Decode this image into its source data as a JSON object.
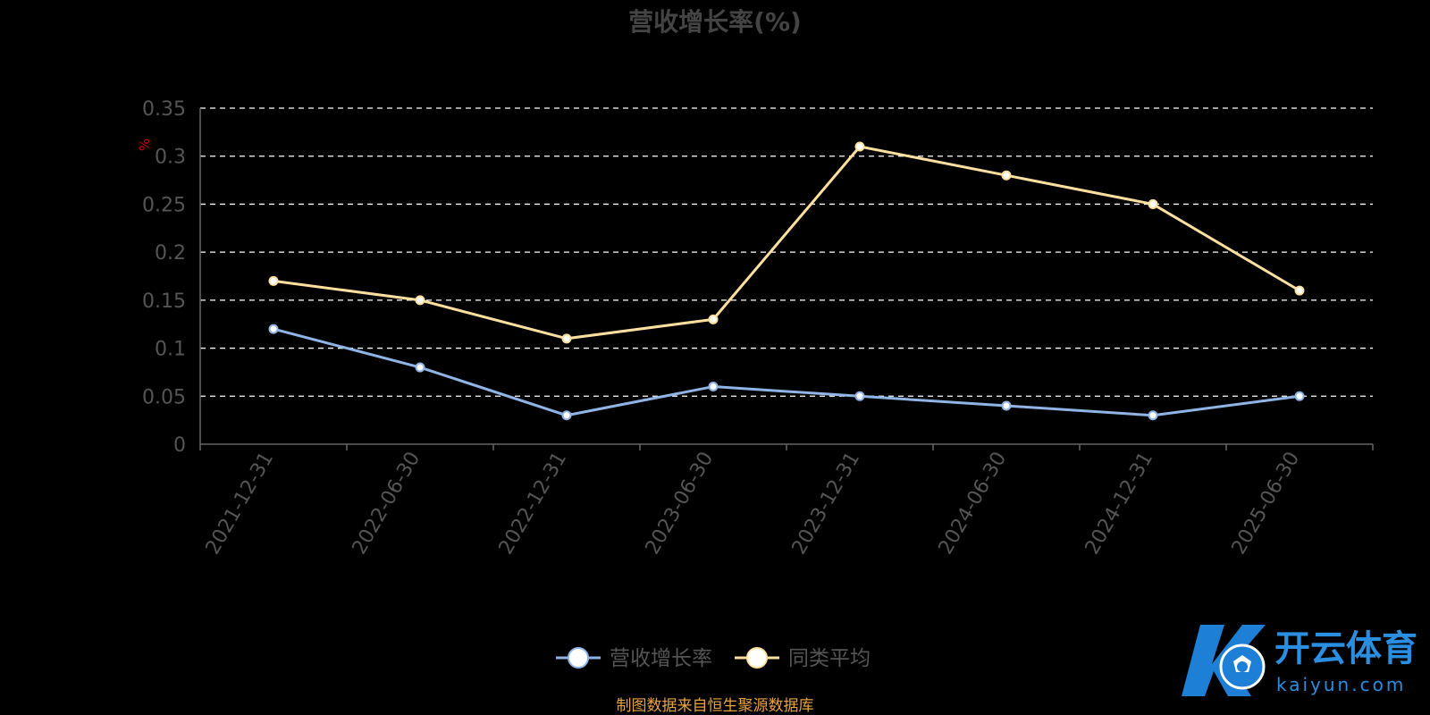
{
  "chart_data": {
    "type": "line",
    "title": "营收增长率(%)",
    "y_unit": "%",
    "ylim": [
      0,
      0.35
    ],
    "yticks": [
      "0",
      "0.05",
      "0.1",
      "0.15",
      "0.2",
      "0.25",
      "0.3",
      "0.35"
    ],
    "categories": [
      "2021-12-31",
      "2022-06-30",
      "2022-12-31",
      "2023-06-30",
      "2023-12-31",
      "2024-06-30",
      "2024-12-31",
      "2025-06-30"
    ],
    "series": [
      {
        "name": "营收增长率",
        "color": "#8fb4e5",
        "values": [
          0.12,
          0.08,
          0.03,
          0.06,
          0.05,
          0.04,
          0.03,
          0.05
        ]
      },
      {
        "name": "同类平均",
        "color": "#fde0a0",
        "values": [
          0.17,
          0.15,
          0.11,
          0.13,
          0.31,
          0.28,
          0.25,
          0.16
        ]
      }
    ],
    "grid": true,
    "legend_position": "bottom-center"
  },
  "source_note": "制图数据来自恒生聚源数据库",
  "watermark": {
    "brand": "开云体育",
    "domain": "kaiyun.com"
  },
  "colors": {
    "background": "#000000",
    "axis": "#666666",
    "tick_label": "#555555",
    "title": "#444444",
    "unit": "#cc0000",
    "source_note": "#e8a33c",
    "watermark": "#2a8fe0"
  }
}
